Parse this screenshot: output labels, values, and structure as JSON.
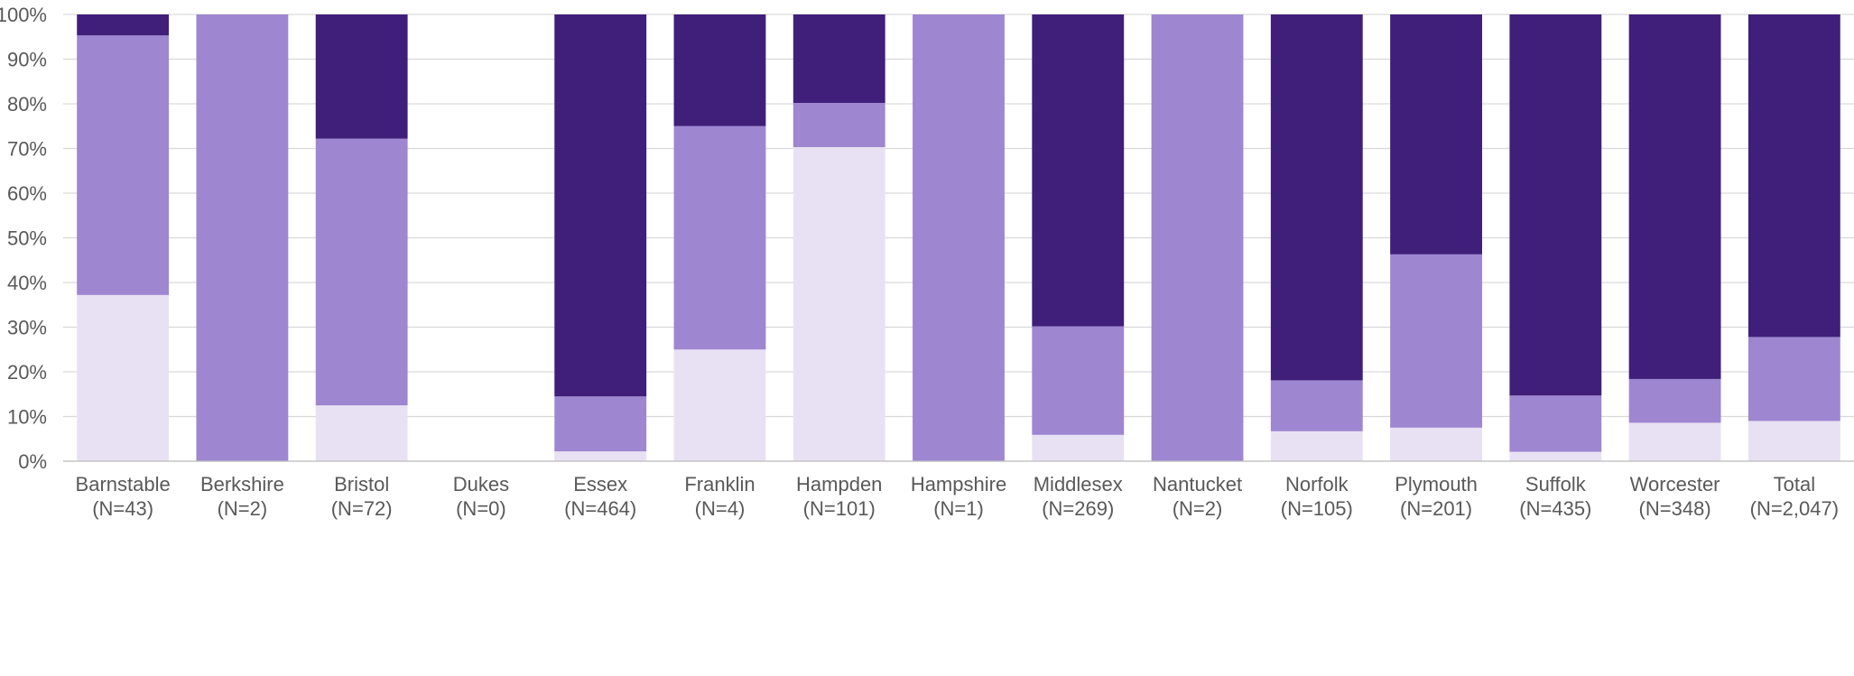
{
  "chart_data": {
    "type": "bar",
    "stacked": true,
    "percent_stacked": true,
    "title": "",
    "xlabel": "",
    "ylabel": "",
    "ylim": [
      0,
      100
    ],
    "y_ticks": [
      "0%",
      "10%",
      "20%",
      "30%",
      "40%",
      "50%",
      "60%",
      "70%",
      "80%",
      "90%",
      "100%"
    ],
    "grid": true,
    "legend": "none",
    "categories": [
      [
        "Barnstable",
        "(N=43)"
      ],
      [
        "Berkshire",
        "(N=2)"
      ],
      [
        "Bristol",
        "(N=72)"
      ],
      [
        "Dukes",
        "(N=0)"
      ],
      [
        "Essex",
        "(N=464)"
      ],
      [
        "Franklin",
        "(N=4)"
      ],
      [
        "Hampden",
        "(N=101)"
      ],
      [
        "Hampshire",
        "(N=1)"
      ],
      [
        "Middlesex",
        "(N=269)"
      ],
      [
        "Nantucket",
        "(N=2)"
      ],
      [
        "Norfolk",
        "(N=105)"
      ],
      [
        "Plymouth",
        "(N=201)"
      ],
      [
        "Suffolk",
        "(N=435)"
      ],
      [
        "Worcester",
        "(N=348)"
      ],
      [
        "Total",
        "(N=2,047)"
      ]
    ],
    "series": [
      {
        "color": "#E8E1F3",
        "values": [
          37.2,
          0,
          12.5,
          0,
          2.2,
          25,
          70.3,
          0,
          5.9,
          0,
          6.7,
          7.5,
          2.1,
          8.6,
          9.0
        ]
      },
      {
        "color": "#9E86D1",
        "values": [
          58.1,
          100,
          59.7,
          0,
          12.3,
          50,
          9.9,
          100,
          24.3,
          100,
          11.4,
          38.8,
          12.6,
          9.8,
          18.8
        ]
      },
      {
        "color": "#3F1F7A",
        "values": [
          4.7,
          0,
          27.8,
          0,
          85.5,
          25,
          19.8,
          0,
          69.8,
          0,
          81.9,
          53.7,
          85.3,
          81.6,
          72.2
        ]
      }
    ]
  }
}
